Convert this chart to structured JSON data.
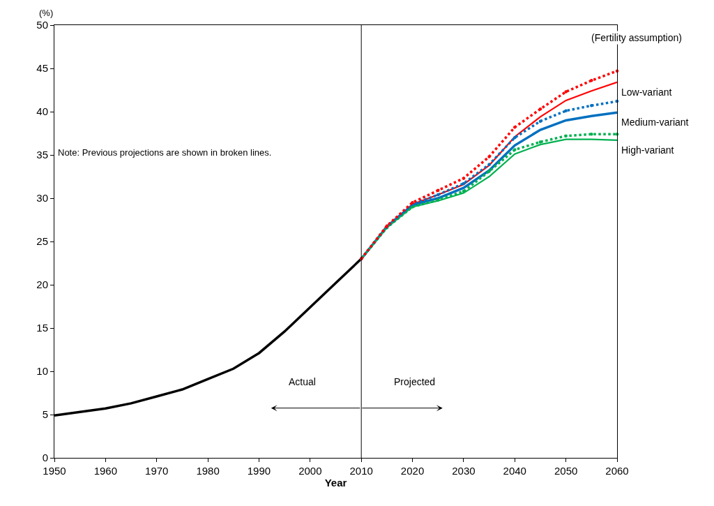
{
  "chart_data": {
    "type": "line",
    "xlabel": "Year",
    "ylabel": "(%)",
    "x": [
      1950,
      1955,
      1960,
      1965,
      1970,
      1975,
      1980,
      1985,
      1990,
      1995,
      2000,
      2005,
      2010
    ],
    "xlim": [
      1950,
      2060
    ],
    "xticks": [
      1950,
      1960,
      1970,
      1980,
      1990,
      2000,
      2010,
      2020,
      2030,
      2040,
      2050,
      2060
    ],
    "ylim": [
      0,
      50
    ],
    "yticks": [
      0,
      5,
      10,
      15,
      20,
      25,
      30,
      35,
      40,
      45,
      50
    ],
    "legend": false,
    "series": [
      {
        "color": "#000000",
        "line_style": "solid",
        "values": [
          4.9,
          5.3,
          5.7,
          6.3,
          7.1,
          7.9,
          9.1,
          10.3,
          12.1,
          14.6,
          17.4,
          20.2,
          23.0
        ]
      },
      {
        "color": "#ff0000",
        "line_style": "dotted",
        "x": [
          2010,
          2015,
          2020,
          2025,
          2030,
          2035,
          2040,
          2045,
          2050,
          2055,
          2060
        ],
        "values": [
          23.0,
          26.8,
          29.5,
          30.9,
          32.3,
          34.8,
          38.2,
          40.3,
          42.3,
          43.6,
          44.7
        ]
      },
      {
        "name": "Low-variant",
        "color": "#ff0000",
        "line_style": "solid",
        "x": [
          2010,
          2015,
          2020,
          2025,
          2030,
          2035,
          2040,
          2045,
          2050,
          2055,
          2060
        ],
        "values": [
          23.0,
          26.8,
          29.3,
          30.4,
          31.6,
          33.8,
          37.1,
          39.4,
          41.3,
          42.4,
          43.4
        ]
      },
      {
        "color": "#0070c0",
        "line_style": "dotted",
        "x": [
          2010,
          2015,
          2020,
          2025,
          2030,
          2035,
          2040,
          2045,
          2050,
          2055,
          2060
        ],
        "values": [
          23.0,
          26.7,
          29.3,
          30.4,
          31.7,
          33.9,
          37.0,
          38.9,
          40.1,
          40.7,
          41.2
        ]
      },
      {
        "name": "Medium-variant",
        "color": "#0070c0",
        "line_style": "solid",
        "x": [
          2010,
          2015,
          2020,
          2025,
          2030,
          2035,
          2040,
          2045,
          2050,
          2055,
          2060
        ],
        "values": [
          23.0,
          26.7,
          29.2,
          30.0,
          31.2,
          33.2,
          36.1,
          37.9,
          39.0,
          39.5,
          39.9
        ]
      },
      {
        "color": "#00b050",
        "line_style": "dotted",
        "x": [
          2010,
          2015,
          2020,
          2025,
          2030,
          2035,
          2040,
          2045,
          2050,
          2055,
          2060
        ],
        "values": [
          23.0,
          26.6,
          29.0,
          29.8,
          30.8,
          33.1,
          35.6,
          36.5,
          37.2,
          37.4,
          37.4
        ]
      },
      {
        "name": "High-variant",
        "color": "#00b050",
        "line_style": "solid",
        "x": [
          2010,
          2015,
          2020,
          2025,
          2030,
          2035,
          2040,
          2045,
          2050,
          2055,
          2060
        ],
        "values": [
          23.0,
          26.6,
          29.0,
          29.7,
          30.6,
          32.5,
          35.1,
          36.2,
          36.8,
          36.8,
          36.7
        ]
      }
    ],
    "ref_lines": [
      {
        "axis": "x",
        "value": 2010,
        "color": "#000000",
        "line_style": "solid"
      }
    ],
    "annotations": [
      "(Fertility assumption)",
      "Note: Previous projections are shown in broken lines.",
      "Actual",
      "Projected"
    ]
  }
}
